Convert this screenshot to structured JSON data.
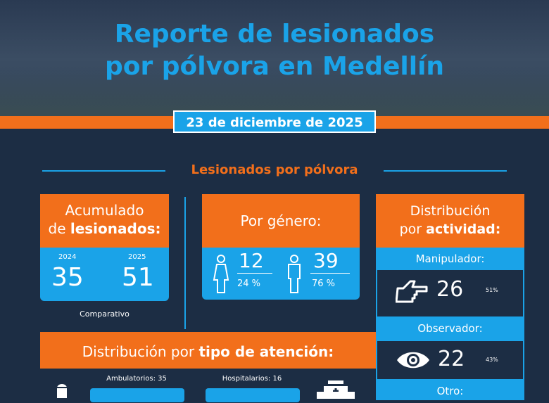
{
  "header": {
    "title_line1": "Reporte de lesionados",
    "title_line2": "por pólvora en Medellín",
    "date": "23 de diciembre de 2025"
  },
  "section_title": "Lesionados por pólvora",
  "accumulated": {
    "title_normal": "Acumulado",
    "title_pre": "de ",
    "title_bold": "lesionados:",
    "year1": "2024",
    "value1": "35",
    "year2": "2025",
    "value2": "51",
    "caption": "Comparativo"
  },
  "gender": {
    "title": "Por género:",
    "female_count": "12",
    "female_pct": "24 %",
    "male_count": "39",
    "male_pct": "76 %"
  },
  "activity": {
    "title_normal": "Distribución",
    "title_pre": "por ",
    "title_bold": "actividad:",
    "items": [
      {
        "label": "Manipulador:",
        "count": "26",
        "pct": "51%",
        "icon": "pointing-hand-icon"
      },
      {
        "label": "Observador:",
        "count": "22",
        "pct": "43%",
        "icon": "eye-icon"
      },
      {
        "label": "Otro:"
      }
    ]
  },
  "attention": {
    "title_normal": "Distribución por ",
    "title_bold": "tipo de atención:",
    "ambulatory_label": "Ambulatorios: 35",
    "hospital_label": "Hospitalarios: 16"
  },
  "colors": {
    "orange": "#f26f1b",
    "blue": "#1aa3e8",
    "navy": "#1c2d44"
  }
}
